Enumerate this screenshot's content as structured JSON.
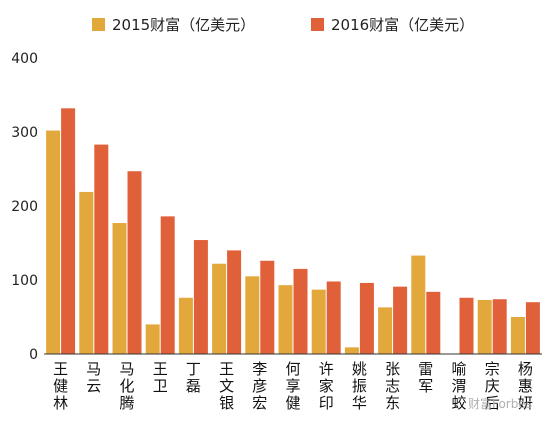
{
  "chart_data": {
    "type": "bar",
    "categories": [
      "王健林",
      "马云",
      "马化腾",
      "王卫",
      "丁磊",
      "王文银",
      "李彦宏",
      "何享健",
      "许家印",
      "姚振华",
      "张志东",
      "雷军",
      "喻渭蛟",
      "宗庆后",
      "杨惠妍"
    ],
    "series": [
      {
        "name": "2015财富（亿美元）",
        "color": "#E3A83C",
        "values": [
          302,
          219,
          177,
          40,
          76,
          122,
          105,
          93,
          87,
          9,
          63,
          133,
          0,
          73,
          50
        ]
      },
      {
        "name": "2016财富（亿美元）",
        "color": "#E0603A",
        "values": [
          332,
          283,
          247,
          186,
          154,
          140,
          126,
          115,
          98,
          96,
          91,
          84,
          76,
          74,
          70
        ]
      }
    ],
    "y_ticks": [
      0,
      100,
      200,
      300,
      400
    ],
    "ylim": [
      0,
      400
    ],
    "legend_position": "top",
    "grid": false
  },
  "watermark": "财富Forbes"
}
